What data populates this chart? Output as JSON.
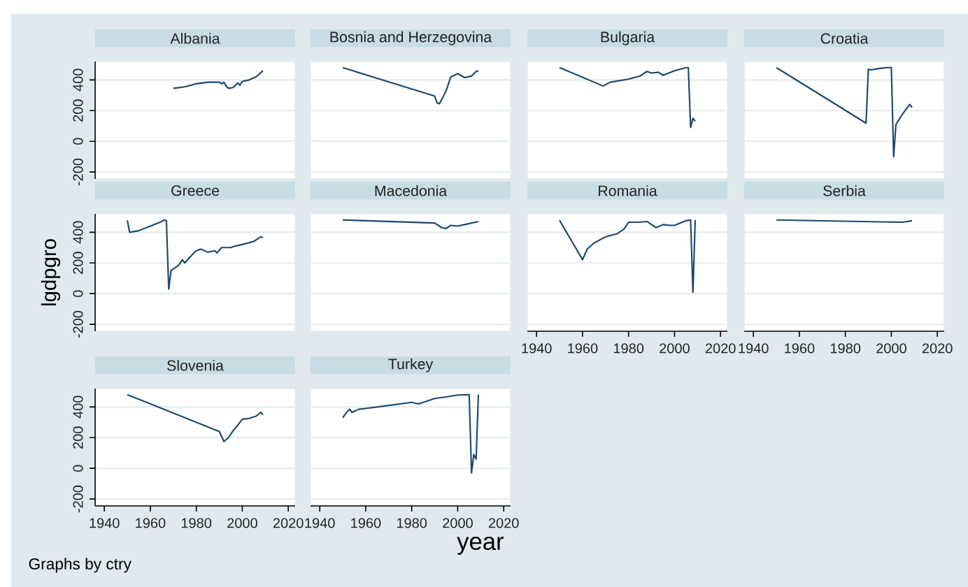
{
  "chart_data": [
    {
      "type": "line",
      "title": "Albania",
      "color": "#1a476f",
      "grid": "y",
      "tick_labels": "y",
      "xlim": [
        1936,
        2023
      ],
      "ylim": [
        -245,
        520
      ],
      "xticks": [
        1940,
        1960,
        1980,
        2000,
        2020
      ],
      "yticks": [
        -200,
        0,
        200,
        400
      ],
      "x": [
        1970,
        1975,
        1980,
        1985,
        1990,
        1991,
        1992,
        1993,
        1994,
        1996,
        1998,
        1999,
        2000,
        2003,
        2006,
        2009
      ],
      "values": [
        345,
        355,
        375,
        385,
        385,
        375,
        385,
        360,
        345,
        350,
        380,
        365,
        390,
        400,
        420,
        460
      ]
    },
    {
      "type": "line",
      "title": "Bosnia and Herzegovina",
      "color": "#1a476f",
      "grid": "y",
      "tick_labels": false,
      "xlim": [
        1936,
        2023
      ],
      "ylim": [
        -245,
        520
      ],
      "xticks": [
        1940,
        1960,
        1980,
        2000,
        2020
      ],
      "yticks": [
        -200,
        0,
        200,
        400
      ],
      "x": [
        1950,
        1990,
        1991,
        1992,
        1993,
        1995,
        1997,
        2000,
        2003,
        2006,
        2008,
        2009
      ],
      "values": [
        480,
        295,
        250,
        245,
        270,
        330,
        420,
        440,
        415,
        425,
        455,
        460
      ]
    },
    {
      "type": "line",
      "title": "Bulgaria",
      "color": "#1a476f",
      "grid": "y",
      "tick_labels": false,
      "xlim": [
        1936,
        2023
      ],
      "ylim": [
        -245,
        520
      ],
      "xticks": [
        1940,
        1960,
        1980,
        2000,
        2020
      ],
      "yticks": [
        -200,
        0,
        200,
        400
      ],
      "x": [
        1950,
        1969,
        1972,
        1980,
        1985,
        1988,
        1990,
        1993,
        1995,
        2000,
        2005,
        2006,
        2007,
        2008,
        2009
      ],
      "values": [
        480,
        360,
        385,
        405,
        425,
        455,
        445,
        450,
        430,
        460,
        480,
        480,
        90,
        150,
        130
      ]
    },
    {
      "type": "line",
      "title": "Croatia",
      "color": "#1a476f",
      "grid": "y",
      "tick_labels": false,
      "xlim": [
        1936,
        2023
      ],
      "ylim": [
        -245,
        520
      ],
      "xticks": [
        1940,
        1960,
        1980,
        2000,
        2020
      ],
      "yticks": [
        -200,
        0,
        200,
        400
      ],
      "x": [
        1950,
        1989,
        1990,
        1991,
        1995,
        1998,
        2000,
        2001,
        2002,
        2005,
        2008,
        2009
      ],
      "values": [
        480,
        118,
        470,
        465,
        475,
        480,
        480,
        -100,
        110,
        180,
        240,
        220
      ]
    },
    {
      "type": "line",
      "title": "Greece",
      "ylabel": "lgdpgro",
      "color": "#1a476f",
      "grid": "y",
      "tick_labels": "y",
      "xlim": [
        1936,
        2023
      ],
      "ylim": [
        -245,
        520
      ],
      "xticks": [
        1940,
        1960,
        1980,
        2000,
        2020
      ],
      "yticks": [
        -200,
        0,
        200,
        400
      ],
      "x": [
        1950,
        1951,
        1955,
        1960,
        1965,
        1966,
        1967,
        1968,
        1969,
        1972,
        1974,
        1975,
        1978,
        1980,
        1982,
        1985,
        1988,
        1989,
        1991,
        1995,
        1997,
        2000,
        2005,
        2008,
        2009
      ],
      "values": [
        478,
        400,
        410,
        440,
        470,
        480,
        475,
        30,
        150,
        180,
        220,
        200,
        250,
        280,
        290,
        270,
        280,
        265,
        300,
        300,
        310,
        320,
        340,
        370,
        365
      ]
    },
    {
      "type": "line",
      "title": "Macedonia",
      "color": "#1a476f",
      "grid": "y",
      "tick_labels": false,
      "xlim": [
        1936,
        2023
      ],
      "ylim": [
        -245,
        520
      ],
      "xticks": [
        1940,
        1960,
        1980,
        2000,
        2020
      ],
      "yticks": [
        -200,
        0,
        200,
        400
      ],
      "x": [
        1950,
        1990,
        1993,
        1995,
        1997,
        2000,
        2003,
        2006,
        2009
      ],
      "values": [
        480,
        460,
        430,
        425,
        445,
        440,
        450,
        460,
        470
      ]
    },
    {
      "type": "line",
      "title": "Romania",
      "color": "#1a476f",
      "grid": "y",
      "tick_labels": "x",
      "xlim": [
        1936,
        2023
      ],
      "ylim": [
        -245,
        520
      ],
      "xticks": [
        1940,
        1960,
        1980,
        2000,
        2020
      ],
      "yticks": [
        -200,
        0,
        200,
        400
      ],
      "x": [
        1950,
        1960,
        1962,
        1965,
        1970,
        1975,
        1978,
        1980,
        1985,
        1988,
        1990,
        1992,
        1995,
        1998,
        2000,
        2005,
        2007,
        2008,
        2009
      ],
      "values": [
        478,
        221,
        290,
        330,
        370,
        390,
        420,
        465,
        465,
        470,
        450,
        430,
        450,
        445,
        445,
        475,
        480,
        8,
        480
      ]
    },
    {
      "type": "line",
      "title": "Serbia",
      "color": "#1a476f",
      "grid": "y",
      "tick_labels": "x",
      "xlim": [
        1936,
        2023
      ],
      "ylim": [
        -245,
        520
      ],
      "xticks": [
        1940,
        1960,
        1980,
        2000,
        2020
      ],
      "yticks": [
        -200,
        0,
        200,
        400
      ],
      "x": [
        1950,
        2005,
        2009
      ],
      "values": [
        480,
        465,
        475
      ]
    },
    {
      "type": "line",
      "title": "Slovenia",
      "annotations": [
        "Graphs by ctry"
      ],
      "color": "#1a476f",
      "grid": "y",
      "xlim": [
        1936,
        2023
      ],
      "ylim": [
        -245,
        520
      ],
      "xticks": [
        1940,
        1960,
        1980,
        2000,
        2020
      ],
      "yticks": [
        -200,
        0,
        200,
        400
      ],
      "x": [
        1950,
        1990,
        1992,
        1994,
        1996,
        1998,
        2000,
        2003,
        2006,
        2008,
        2009
      ],
      "values": [
        480,
        240,
        175,
        200,
        245,
        280,
        320,
        325,
        340,
        365,
        350
      ]
    },
    {
      "type": "line",
      "title": "Turkey",
      "xlabel": "year",
      "color": "#1a476f",
      "grid": "y",
      "tick_labels": "x",
      "xlim": [
        1936,
        2023
      ],
      "ylim": [
        -245,
        520
      ],
      "xticks": [
        1940,
        1960,
        1980,
        2000,
        2020
      ],
      "yticks": [
        -200,
        0,
        200,
        400
      ],
      "x": [
        1950,
        1952,
        1953,
        1954,
        1957,
        1960,
        1965,
        1970,
        1975,
        1980,
        1983,
        1990,
        1995,
        2000,
        2005,
        2006,
        2007,
        2008,
        2009
      ],
      "values": [
        330,
        370,
        385,
        365,
        385,
        390,
        400,
        410,
        420,
        430,
        420,
        455,
        465,
        478,
        480,
        -30,
        90,
        60,
        480
      ]
    }
  ]
}
